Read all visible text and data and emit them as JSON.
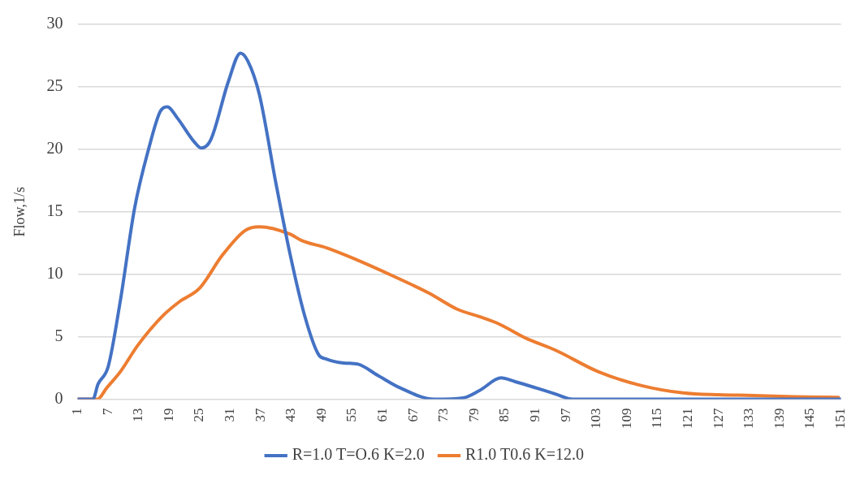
{
  "chart_data": {
    "type": "line",
    "ylabel": "Flow,1/s",
    "xlim": [
      1,
      151
    ],
    "xticks": [
      1,
      7,
      13,
      19,
      25,
      31,
      37,
      43,
      49,
      55,
      61,
      67,
      73,
      79,
      85,
      91,
      97,
      103,
      109,
      115,
      121,
      127,
      133,
      139,
      145,
      151
    ],
    "ylim": [
      0,
      30
    ],
    "yticks": [
      0,
      5,
      10,
      15,
      20,
      25,
      30
    ],
    "grid": "y",
    "legend": "bottom",
    "marker": "none",
    "line_style": "solid",
    "series": [
      {
        "name": "R=1.0 T=O.6 K=2.0",
        "color": "#4472c4",
        "x": [
          1,
          4,
          5,
          7,
          9.4,
          12.2,
          15,
          17.2,
          18.6,
          20.6,
          23.9,
          25.3,
          27.2,
          30.6,
          33,
          34.4,
          36.7,
          40,
          42.8,
          45.6,
          48.3,
          50,
          53.3,
          56.1,
          60,
          64.4,
          71.1,
          76.7,
          80,
          84.2,
          87,
          91.1,
          95,
          98.3,
          110,
          130,
          151
        ],
        "values": [
          0,
          0,
          1.2,
          2.6,
          7.9,
          15.3,
          20.1,
          23,
          23.4,
          22.5,
          20.6,
          20.1,
          20.8,
          25.4,
          27.7,
          27.1,
          24.4,
          17.2,
          11.5,
          6.7,
          3.6,
          3.2,
          2.9,
          2.8,
          1.9,
          0.9,
          0,
          0.1,
          0.7,
          1.7,
          1.4,
          0.9,
          0.4,
          0,
          0,
          0,
          0
        ]
      },
      {
        "name": "R1.0 T0.6 K=12.0",
        "color": "#ed7d31",
        "x": [
          1,
          4.9,
          6.7,
          9.4,
          12.8,
          17.8,
          21,
          25,
          29.4,
          33.9,
          36.7,
          42.8,
          45,
          50,
          55,
          63.3,
          70,
          75.6,
          80,
          83.9,
          89,
          95,
          103.3,
          111.7,
          120,
          127,
          133.8,
          142,
          150.5
        ],
        "values": [
          0,
          0,
          0.9,
          2.2,
          4.3,
          6.7,
          7.8,
          8.9,
          11.5,
          13.5,
          13.8,
          13.2,
          12.7,
          12.1,
          11.3,
          9.8,
          8.5,
          7.2,
          6.6,
          6,
          4.9,
          3.9,
          2.2,
          1.1,
          0.5,
          0.35,
          0.3,
          0.2,
          0.15
        ]
      }
    ]
  }
}
